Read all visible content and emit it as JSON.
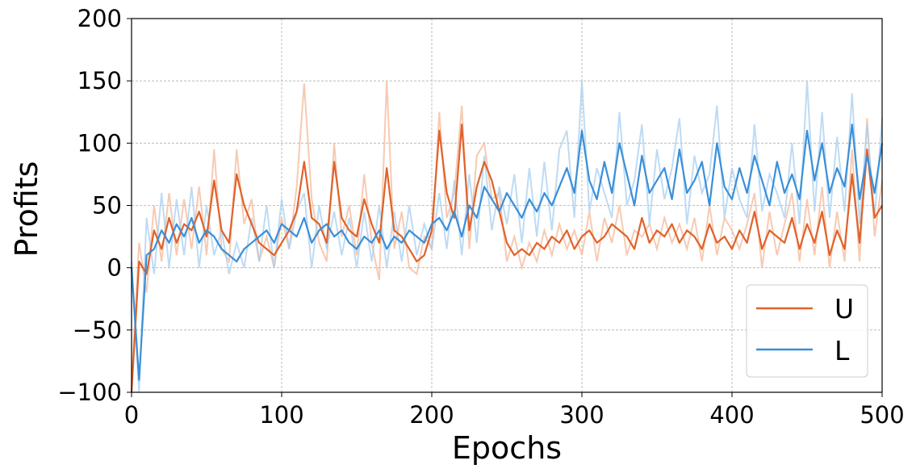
{
  "chart_data": {
    "type": "line",
    "xlabel": "Epochs",
    "ylabel": "Profits",
    "xlim": [
      0,
      500
    ],
    "ylim": [
      -100,
      200
    ],
    "xticks": [
      0,
      100,
      200,
      300,
      400,
      500
    ],
    "yticks": [
      -100,
      -50,
      0,
      50,
      100,
      150,
      200
    ],
    "xtick_labels": [
      "0",
      "100",
      "200",
      "300",
      "400",
      "500"
    ],
    "ytick_labels": [
      "−100",
      "−50",
      "0",
      "50",
      "100",
      "150",
      "200"
    ],
    "grid": true,
    "legend_position": "lower-right",
    "series": [
      {
        "name": "U",
        "color": "#e0622a",
        "raw_color": "#f4b898",
        "x": [
          0,
          5,
          10,
          15,
          20,
          25,
          30,
          35,
          40,
          45,
          50,
          55,
          60,
          65,
          70,
          75,
          80,
          85,
          90,
          95,
          100,
          105,
          110,
          115,
          120,
          125,
          130,
          135,
          140,
          145,
          150,
          155,
          160,
          165,
          170,
          175,
          180,
          185,
          190,
          195,
          200,
          205,
          210,
          215,
          220,
          225,
          230,
          235,
          240,
          245,
          250,
          255,
          260,
          265,
          270,
          275,
          280,
          285,
          290,
          295,
          300,
          305,
          310,
          315,
          320,
          325,
          330,
          335,
          340,
          345,
          350,
          355,
          360,
          365,
          370,
          375,
          380,
          385,
          390,
          395,
          400,
          405,
          410,
          415,
          420,
          425,
          430,
          435,
          440,
          445,
          450,
          455,
          460,
          465,
          470,
          475,
          480,
          485,
          490,
          495,
          500
        ],
        "values": [
          -100,
          5,
          -5,
          30,
          15,
          40,
          20,
          35,
          30,
          45,
          25,
          70,
          30,
          20,
          75,
          50,
          35,
          20,
          15,
          10,
          20,
          30,
          45,
          85,
          40,
          35,
          20,
          85,
          40,
          30,
          25,
          55,
          35,
          20,
          80,
          30,
          25,
          15,
          5,
          10,
          30,
          110,
          60,
          40,
          115,
          30,
          65,
          85,
          70,
          45,
          20,
          10,
          15,
          10,
          20,
          15,
          25,
          20,
          30,
          15,
          25,
          30,
          20,
          25,
          35,
          30,
          25,
          15,
          40,
          20,
          30,
          25,
          35,
          20,
          30,
          25,
          15,
          35,
          20,
          25,
          15,
          30,
          20,
          45,
          15,
          30,
          25,
          20,
          40,
          15,
          35,
          20,
          45,
          10,
          30,
          15,
          75,
          20,
          95,
          40,
          50
        ],
        "raw_values": [
          -95,
          20,
          -20,
          50,
          5,
          60,
          10,
          55,
          15,
          65,
          10,
          95,
          15,
          5,
          95,
          35,
          55,
          5,
          25,
          0,
          40,
          15,
          65,
          148,
          55,
          20,
          5,
          100,
          25,
          50,
          10,
          75,
          20,
          -10,
          150,
          15,
          45,
          0,
          -5,
          25,
          15,
          125,
          40,
          60,
          130,
          15,
          90,
          100,
          55,
          60,
          5,
          25,
          0,
          20,
          5,
          30,
          10,
          35,
          15,
          30,
          10,
          45,
          5,
          40,
          20,
          50,
          10,
          30,
          25,
          35,
          15,
          40,
          20,
          35,
          15,
          40,
          5,
          50,
          10,
          40,
          30,
          15,
          35,
          60,
          0,
          45,
          10,
          35,
          60,
          5,
          55,
          10,
          65,
          0,
          45,
          5,
          95,
          5,
          120,
          25,
          70
        ]
      },
      {
        "name": "L",
        "color": "#3a8fd8",
        "raw_color": "#a8cff0",
        "x": [
          0,
          5,
          10,
          15,
          20,
          25,
          30,
          35,
          40,
          45,
          50,
          55,
          60,
          65,
          70,
          75,
          80,
          85,
          90,
          95,
          100,
          105,
          110,
          115,
          120,
          125,
          130,
          135,
          140,
          145,
          150,
          155,
          160,
          165,
          170,
          175,
          180,
          185,
          190,
          195,
          200,
          205,
          210,
          215,
          220,
          225,
          230,
          235,
          240,
          245,
          250,
          255,
          260,
          265,
          270,
          275,
          280,
          285,
          290,
          295,
          300,
          305,
          310,
          315,
          320,
          325,
          330,
          335,
          340,
          345,
          350,
          355,
          360,
          365,
          370,
          375,
          380,
          385,
          390,
          395,
          400,
          405,
          410,
          415,
          420,
          425,
          430,
          435,
          440,
          445,
          450,
          455,
          460,
          465,
          470,
          475,
          480,
          485,
          490,
          495,
          500
        ],
        "values": [
          0,
          -90,
          10,
          15,
          30,
          20,
          35,
          25,
          40,
          20,
          30,
          25,
          15,
          10,
          5,
          15,
          20,
          25,
          30,
          20,
          35,
          30,
          25,
          40,
          20,
          30,
          35,
          25,
          30,
          20,
          15,
          25,
          20,
          30,
          15,
          25,
          20,
          30,
          25,
          20,
          35,
          40,
          30,
          45,
          25,
          50,
          40,
          65,
          55,
          45,
          60,
          50,
          40,
          55,
          45,
          60,
          50,
          65,
          80,
          60,
          110,
          70,
          55,
          85,
          60,
          100,
          75,
          50,
          90,
          60,
          70,
          80,
          55,
          95,
          60,
          70,
          85,
          50,
          100,
          65,
          55,
          80,
          60,
          90,
          70,
          50,
          85,
          60,
          75,
          55,
          110,
          70,
          100,
          60,
          80,
          65,
          115,
          55,
          90,
          60,
          100
        ],
        "raw_values": [
          5,
          -100,
          40,
          -5,
          60,
          0,
          55,
          10,
          65,
          0,
          50,
          10,
          30,
          -5,
          20,
          0,
          40,
          5,
          50,
          0,
          55,
          15,
          45,
          60,
          0,
          50,
          15,
          45,
          10,
          40,
          0,
          45,
          5,
          50,
          0,
          45,
          5,
          50,
          10,
          35,
          15,
          60,
          15,
          70,
          10,
          75,
          20,
          90,
          30,
          65,
          35,
          75,
          20,
          80,
          25,
          85,
          30,
          95,
          110,
          40,
          150,
          45,
          80,
          60,
          40,
          125,
          50,
          70,
          115,
          35,
          95,
          55,
          80,
          120,
          35,
          90,
          60,
          75,
          130,
          40,
          80,
          55,
          40,
          115,
          45,
          75,
          60,
          40,
          100,
          35,
          150,
          45,
          125,
          40,
          105,
          45,
          140,
          35,
          115,
          40,
          120
        ]
      }
    ]
  }
}
